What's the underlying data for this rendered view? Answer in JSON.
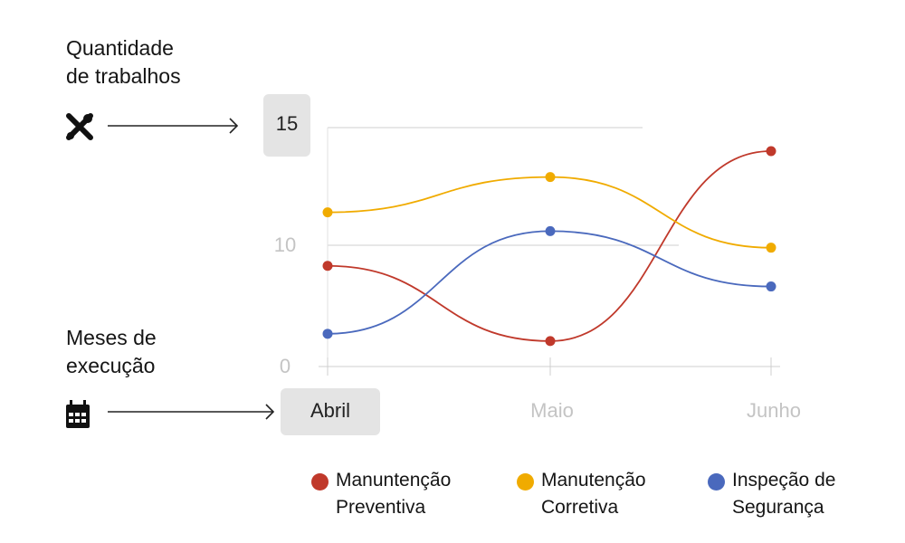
{
  "annotations": {
    "y_label": [
      "Quantidade",
      "de trabalhos"
    ],
    "x_label": [
      "Meses de",
      "execução"
    ],
    "y_icon": "tools-icon",
    "x_icon": "calendar-icon"
  },
  "chart_data": {
    "type": "line",
    "categories": [
      "Abril",
      "Maio",
      "Junho"
    ],
    "highlighted_x_tick": "Abril",
    "highlighted_y_tick": "15",
    "y_ticks": [
      "0",
      "10",
      "15"
    ],
    "smooth": true,
    "grid": true,
    "legend_position": "bottom",
    "series": [
      {
        "name": "Manuntenção Preventiva",
        "name_lines": [
          "Manuntenção",
          "Preventiva"
        ],
        "color": "#c0392b",
        "values": [
          8.3,
          2.1,
          14
        ]
      },
      {
        "name": "Manutenção Corretiva",
        "name_lines": [
          "Manutenção",
          "Corretiva"
        ],
        "color": "#f0ab00",
        "values": [
          11.4,
          12.9,
          9.8
        ]
      },
      {
        "name": "Inspeção de Segurança",
        "name_lines": [
          "Inspeção de",
          "Segurança"
        ],
        "color": "#4a69bd",
        "values": [
          2.7,
          10.6,
          6.6
        ]
      }
    ]
  }
}
